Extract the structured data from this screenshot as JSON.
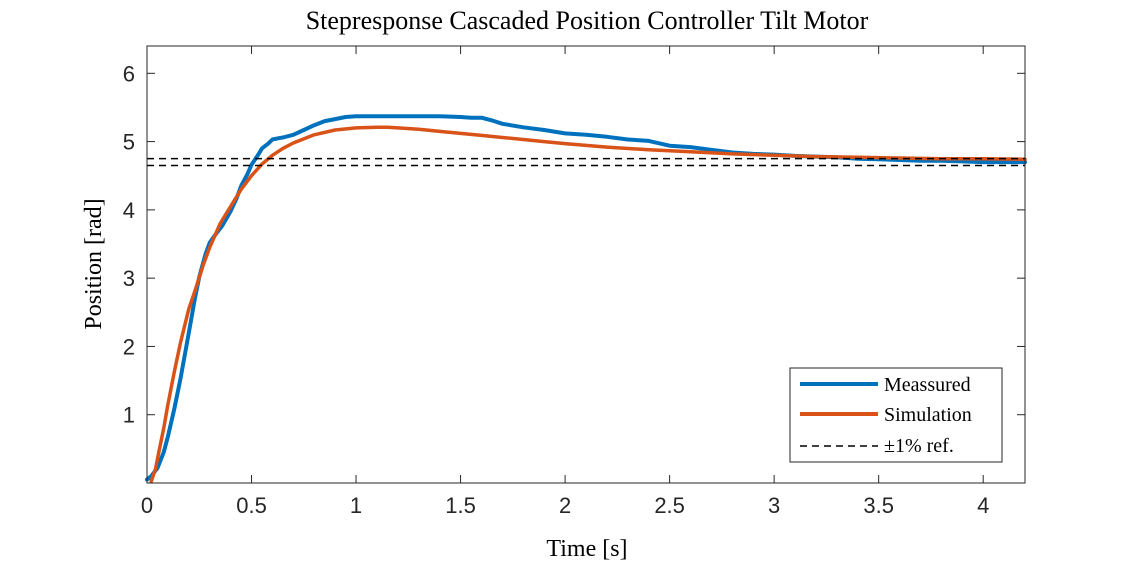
{
  "chart_data": {
    "type": "line",
    "title": "Stepresponse Cascaded Position Controller Tilt Motor",
    "xlabel": "Time [s]",
    "ylabel": "Position [rad]",
    "xlim": [
      0,
      4.2
    ],
    "ylim": [
      0,
      6.4
    ],
    "xticks": [
      0,
      0.5,
      1,
      1.5,
      2,
      2.5,
      3,
      3.5,
      4
    ],
    "xtick_labels": [
      "0",
      "0.5",
      "1",
      "1.5",
      "2",
      "2.5",
      "3",
      "3.5",
      "4"
    ],
    "yticks": [
      1,
      2,
      3,
      4,
      5,
      6
    ],
    "ytick_labels": [
      "1",
      "2",
      "3",
      "4",
      "5",
      "6"
    ],
    "grid": false,
    "box": true,
    "legend_position": "bottom-right",
    "series": [
      {
        "name": "Meassured",
        "color": "#0072BD",
        "style": "solid",
        "x": [
          0,
          0.02,
          0.05,
          0.08,
          0.1,
          0.13,
          0.16,
          0.2,
          0.23,
          0.25,
          0.28,
          0.3,
          0.33,
          0.36,
          0.4,
          0.43,
          0.45,
          0.48,
          0.5,
          0.53,
          0.55,
          0.58,
          0.6,
          0.63,
          0.65,
          0.7,
          0.75,
          0.8,
          0.85,
          0.9,
          0.95,
          1.0,
          1.1,
          1.2,
          1.3,
          1.4,
          1.5,
          1.55,
          1.6,
          1.65,
          1.7,
          1.8,
          1.9,
          2.0,
          2.1,
          2.2,
          2.3,
          2.4,
          2.5,
          2.6,
          2.7,
          2.8,
          2.9,
          3.0,
          3.1,
          3.2,
          3.3,
          3.4,
          3.5,
          3.6,
          3.7,
          3.8,
          3.9,
          4.0,
          4.1,
          4.2
        ],
        "y": [
          0.05,
          0.1,
          0.22,
          0.45,
          0.68,
          1.08,
          1.52,
          2.2,
          2.72,
          3.02,
          3.35,
          3.52,
          3.65,
          3.77,
          3.98,
          4.18,
          4.35,
          4.52,
          4.66,
          4.8,
          4.9,
          4.97,
          5.03,
          5.05,
          5.06,
          5.1,
          5.17,
          5.24,
          5.3,
          5.33,
          5.36,
          5.37,
          5.37,
          5.37,
          5.37,
          5.37,
          5.36,
          5.35,
          5.35,
          5.31,
          5.26,
          5.21,
          5.17,
          5.12,
          5.1,
          5.07,
          5.03,
          5.01,
          4.94,
          4.92,
          4.88,
          4.84,
          4.82,
          4.81,
          4.79,
          4.78,
          4.77,
          4.75,
          4.74,
          4.73,
          4.72,
          4.72,
          4.71,
          4.7,
          4.7,
          4.7
        ]
      },
      {
        "name": "Simulation",
        "color": "#D95319",
        "style": "solid",
        "x": [
          0.02,
          0.04,
          0.06,
          0.08,
          0.1,
          0.13,
          0.16,
          0.2,
          0.23,
          0.27,
          0.3,
          0.35,
          0.4,
          0.45,
          0.5,
          0.55,
          0.6,
          0.65,
          0.7,
          0.8,
          0.9,
          1.0,
          1.1,
          1.15,
          1.2,
          1.3,
          1.4,
          1.5,
          1.6,
          1.7,
          1.8,
          1.9,
          2.0,
          2.2,
          2.4,
          2.6,
          2.8,
          3.0,
          3.2,
          3.4,
          3.6,
          3.8,
          4.0,
          4.2
        ],
        "y": [
          0.02,
          0.2,
          0.5,
          0.8,
          1.15,
          1.62,
          2.05,
          2.55,
          2.82,
          3.2,
          3.45,
          3.8,
          4.05,
          4.3,
          4.5,
          4.67,
          4.8,
          4.9,
          4.98,
          5.1,
          5.17,
          5.2,
          5.21,
          5.21,
          5.2,
          5.18,
          5.15,
          5.12,
          5.09,
          5.06,
          5.03,
          5.0,
          4.97,
          4.92,
          4.88,
          4.85,
          4.82,
          4.8,
          4.78,
          4.77,
          4.76,
          4.75,
          4.75,
          4.74
        ]
      },
      {
        "name": "±1% ref.",
        "color": "#000000",
        "style": "dashed",
        "lines": [
          4.65,
          4.75
        ]
      }
    ]
  }
}
